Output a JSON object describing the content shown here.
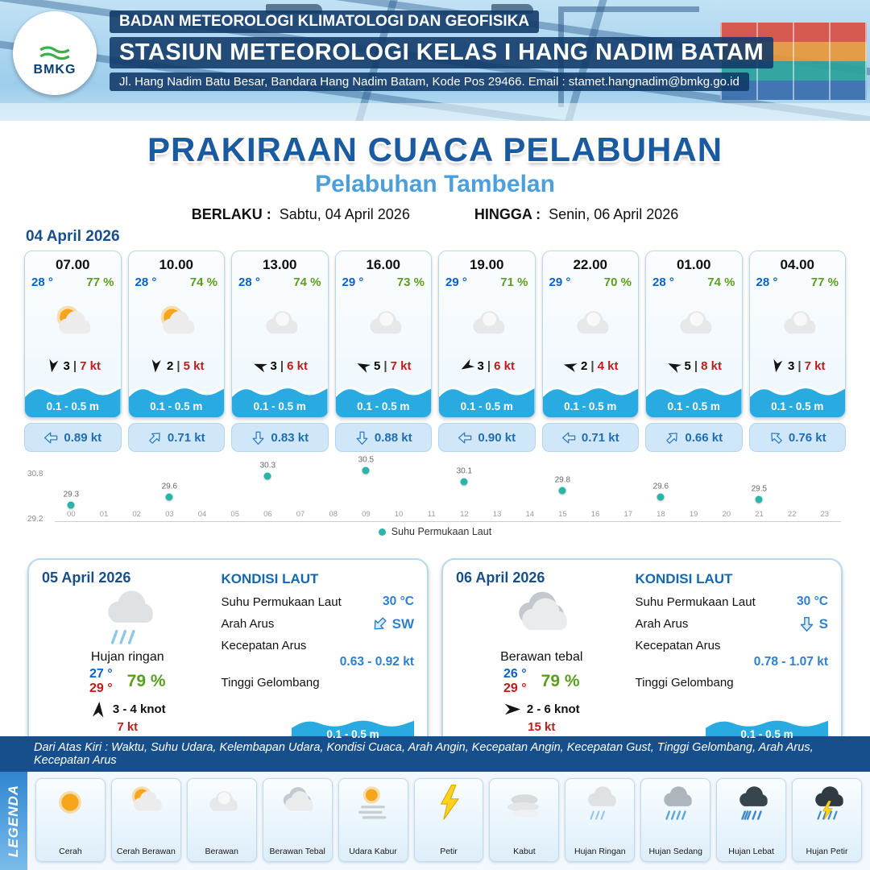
{
  "colors": {
    "dark_blue": "#174f8c",
    "title_blue": "#1a5aa0",
    "subtitle_blue": "#4d9fdb",
    "wave_blue": "#29abe2",
    "temp_blue": "#0a62c9",
    "humidity_green": "#5a9e1e",
    "gust_red": "#c11a1a",
    "sst_teal": "#2bb5a8",
    "current_blue": "#1f6db5"
  },
  "ui": {
    "wind_separator": "|"
  },
  "header": {
    "logo": "BMKG",
    "agency": "BADAN METEOROLOGI KLIMATOLOGI DAN GEOFISIKA",
    "station": "STASIUN METEOROLOGI KELAS I HANG NADIM BATAM",
    "address": "Jl. Hang Nadim Batu Besar, Bandara Hang Nadim Batam, Kode Pos 29466. Email : stamet.hangnadim@bmkg.go.id"
  },
  "title": {
    "main": "PRAKIRAAN CUACA PELABUHAN",
    "subtitle": "Pelabuhan Tambelan",
    "berlaku_label": "BERLAKU :",
    "berlaku_value": "Sabtu, 04 April 2026",
    "hingga_label": "HINGGA :",
    "hingga_value": "Senin, 06 April 2026"
  },
  "forecast": {
    "date": "04 April 2026",
    "cards": [
      {
        "time": "07.00",
        "temp": "28 °",
        "humidity": "77 %",
        "icon": "cerah-berawan",
        "wind_dir_deg": 100,
        "wind_speed": "3",
        "gust": "7 kt",
        "wave": "0.1 - 0.5 m",
        "current_dir_deg": 180,
        "current_speed": "0.89 kt"
      },
      {
        "time": "10.00",
        "temp": "28 °",
        "humidity": "74 %",
        "icon": "cerah-berawan",
        "wind_dir_deg": 95,
        "wind_speed": "2",
        "gust": "5 kt",
        "wave": "0.1 - 0.5 m",
        "current_dir_deg": 315,
        "current_speed": "0.71 kt"
      },
      {
        "time": "13.00",
        "temp": "28 °",
        "humidity": "74 %",
        "icon": "berawan",
        "wind_dir_deg": 200,
        "wind_speed": "3",
        "gust": "6 kt",
        "wave": "0.1 - 0.5 m",
        "current_dir_deg": 90,
        "current_speed": "0.83 kt"
      },
      {
        "time": "16.00",
        "temp": "29 °",
        "humidity": "73 %",
        "icon": "berawan",
        "wind_dir_deg": 205,
        "wind_speed": "5",
        "gust": "7 kt",
        "wave": "0.1 - 0.5 m",
        "current_dir_deg": 90,
        "current_speed": "0.88 kt"
      },
      {
        "time": "19.00",
        "temp": "29 °",
        "humidity": "71 %",
        "icon": "berawan",
        "wind_dir_deg": 150,
        "wind_speed": "3",
        "gust": "6 kt",
        "wave": "0.1 - 0.5 m",
        "current_dir_deg": 180,
        "current_speed": "0.90 kt"
      },
      {
        "time": "22.00",
        "temp": "29 °",
        "humidity": "70 %",
        "icon": "berawan",
        "wind_dir_deg": 195,
        "wind_speed": "2",
        "gust": "4 kt",
        "wave": "0.1 - 0.5 m",
        "current_dir_deg": 180,
        "current_speed": "0.71 kt"
      },
      {
        "time": "01.00",
        "temp": "28 °",
        "humidity": "74 %",
        "icon": "berawan",
        "wind_dir_deg": 205,
        "wind_speed": "5",
        "gust": "8 kt",
        "wave": "0.1 - 0.5 m",
        "current_dir_deg": 315,
        "current_speed": "0.66 kt"
      },
      {
        "time": "04.00",
        "temp": "28 °",
        "humidity": "77 %",
        "icon": "berawan",
        "wind_dir_deg": 100,
        "wind_speed": "3",
        "gust": "7 kt",
        "wave": "0.1 - 0.5 m",
        "current_dir_deg": 225,
        "current_speed": "0.76 kt"
      }
    ]
  },
  "chart_data": {
    "type": "scatter",
    "title": "",
    "series_name": "Suhu Permukaan Laut",
    "x": [
      0,
      3,
      6,
      9,
      12,
      15,
      18,
      21
    ],
    "values": [
      29.3,
      29.6,
      30.3,
      30.5,
      30.1,
      29.8,
      29.6,
      29.5
    ],
    "x_ticks": [
      "00",
      "01",
      "02",
      "03",
      "04",
      "05",
      "06",
      "07",
      "08",
      "09",
      "10",
      "11",
      "12",
      "13",
      "14",
      "15",
      "16",
      "17",
      "18",
      "19",
      "20",
      "21",
      "22",
      "23"
    ],
    "ylim": [
      29.2,
      30.8
    ],
    "xlabel": "",
    "ylabel": "",
    "dot_color": "#2bb5a8",
    "grid": false,
    "legend_position": "bottom"
  },
  "daily": [
    {
      "date": "05 April 2026",
      "icon": "hujan-ringan",
      "condition": "Hujan ringan",
      "temp_min": "27 °",
      "temp_max": "29 °",
      "humidity": "79 %",
      "wind_dir_deg": 275,
      "wind_range": "3  - 4 knot",
      "gust": "7 kt",
      "sea_heading": "KONDISI LAUT",
      "sst_label": "Suhu Permukaan Laut",
      "sst_value": "30 °C",
      "current_dir_label": "Arah Arus",
      "current_dir": "SW",
      "current_dir_deg": 135,
      "current_speed_label": "Kecepatan Arus",
      "current_speed": "0.63  - 0.92 kt",
      "wave_label": "Tinggi Gelombang",
      "wave_value": "0.1 - 0.5 m"
    },
    {
      "date": "06 April 2026",
      "icon": "berawan-tebal",
      "condition": "Berawan tebal",
      "temp_min": "26 °",
      "temp_max": "29 °",
      "humidity": "79 %",
      "wind_dir_deg": 0,
      "wind_range": "2  - 6 knot",
      "gust": "15 kt",
      "sea_heading": "KONDISI LAUT",
      "sst_label": "Suhu Permukaan Laut",
      "sst_value": "30 °C",
      "current_dir_label": "Arah Arus",
      "current_dir": "S",
      "current_dir_deg": 90,
      "current_speed_label": "Kecepatan Arus",
      "current_speed": "0.78  - 1.07 kt",
      "wave_label": "Tinggi Gelombang",
      "wave_value": "0.1 - 0.5 m"
    }
  ],
  "footer": {
    "note": "Dari Atas Kiri : Waktu, Suhu Udara, Kelembapan Udara, Kondisi Cuaca, Arah Angin, Kecepatan Angin, Kecepatan Gust, Tinggi Gelombang, Arah Arus, Kecepatan Arus",
    "legend_title": "LEGENDA",
    "items": [
      {
        "label": "Cerah",
        "icon": "cerah"
      },
      {
        "label": "Cerah Berawan",
        "icon": "cerah-berawan"
      },
      {
        "label": "Berawan",
        "icon": "berawan"
      },
      {
        "label": "Berawan Tebal",
        "icon": "berawan-tebal"
      },
      {
        "label": "Udara Kabur",
        "icon": "udara-kabur"
      },
      {
        "label": "Petir",
        "icon": "petir"
      },
      {
        "label": "Kabut",
        "icon": "kabut"
      },
      {
        "label": "Hujan Ringan",
        "icon": "hujan-ringan"
      },
      {
        "label": "Hujan Sedang",
        "icon": "hujan-sedang"
      },
      {
        "label": "Hujan Lebat",
        "icon": "hujan-lebat"
      },
      {
        "label": "Hujan Petir",
        "icon": "hujan-petir"
      }
    ]
  }
}
